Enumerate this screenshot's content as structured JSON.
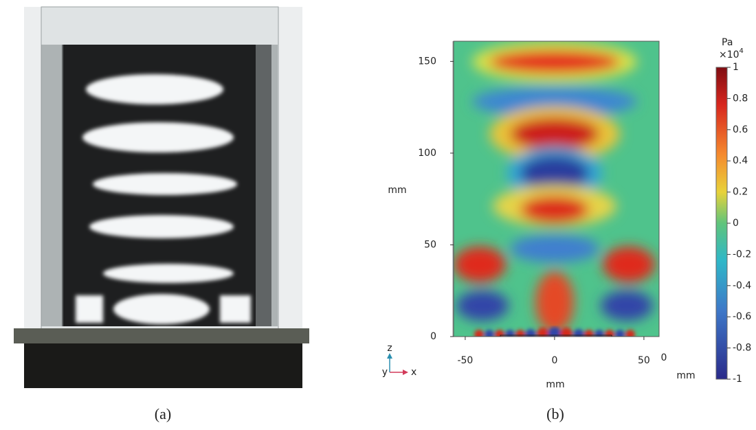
{
  "panels": {
    "a": {
      "label": "(a)"
    },
    "b": {
      "label": "(b)",
      "xlabel": "mm",
      "ylabel": "mm",
      "xlim": [
        -56.5,
        58.5
      ],
      "ylim": [
        0,
        161
      ],
      "xticks": [
        -50,
        0,
        50
      ],
      "yticks": [
        0,
        50,
        100,
        150
      ],
      "extra_labels": [
        "0",
        "mm"
      ],
      "axis_triad": {
        "z": "z",
        "y": "y",
        "x": "x"
      },
      "colorbar": {
        "unit": "Pa",
        "multiplier_base": "×10",
        "multiplier_exponent": "4",
        "lim": [
          -1,
          1
        ],
        "ticks": [
          1,
          0.8,
          0.6,
          0.4,
          0.2,
          0,
          -0.2,
          -0.4,
          -0.6,
          -0.8,
          -1
        ]
      }
    }
  }
}
